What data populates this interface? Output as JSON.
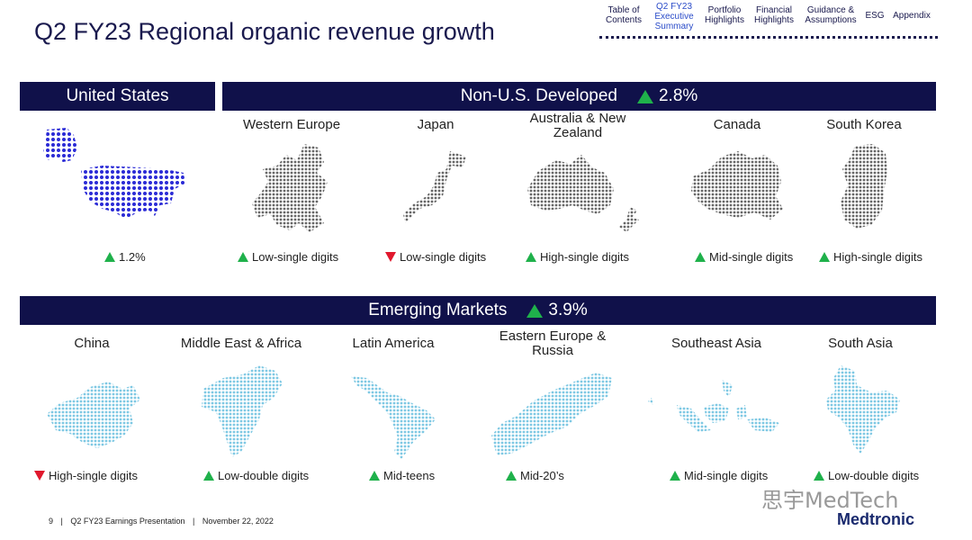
{
  "header": {
    "title": "Q2 FY23 Regional organic revenue growth",
    "nav": [
      {
        "label": "Table of\nContents",
        "active": false
      },
      {
        "label": "Q2 FY23\nExecutive\nSummary",
        "active": true
      },
      {
        "label": "Portfolio\nHighlights",
        "active": false
      },
      {
        "label": "Financial\nHighlights",
        "active": false
      },
      {
        "label": "Guidance &\nAssumptions",
        "active": false
      },
      {
        "label": "ESG",
        "active": false
      },
      {
        "label": "Appendix",
        "active": false
      }
    ]
  },
  "us": {
    "bar_label": "United States",
    "result": "1.2%",
    "direction": "up"
  },
  "developed": {
    "bar_label": "Non-U.S. Developed",
    "bar_value": "2.8%",
    "regions": [
      {
        "name": "Western Europe",
        "result": "Low-single digits",
        "direction": "up"
      },
      {
        "name": "Japan",
        "result": "Low-single digits",
        "direction": "down"
      },
      {
        "name": "Australia & New\nZealand",
        "result": "High-single digits",
        "direction": "up"
      },
      {
        "name": "Canada",
        "result": "Mid-single digits",
        "direction": "up"
      },
      {
        "name": "South Korea",
        "result": "High-single digits",
        "direction": "up"
      }
    ]
  },
  "emerging": {
    "bar_label": "Emerging Markets",
    "bar_value": "3.9%",
    "regions": [
      {
        "name": "China",
        "result": "High-single digits",
        "direction": "down"
      },
      {
        "name": "Middle East & Africa",
        "result": "Low-double digits",
        "direction": "up"
      },
      {
        "name": "Latin America",
        "result": "Mid-teens",
        "direction": "up"
      },
      {
        "name": "Eastern Europe &\nRussia",
        "result": "Mid-20’s",
        "direction": "up"
      },
      {
        "name": "Southeast Asia",
        "result": "Mid-single digits",
        "direction": "up"
      },
      {
        "name": "South Asia",
        "result": "Low-double digits",
        "direction": "up"
      }
    ]
  },
  "footer": {
    "page": "9",
    "presentation": "Q2 FY23 Earnings Presentation",
    "date": "November 22, 2022"
  },
  "watermark": "思宇MedTech",
  "brand": "Medtronic",
  "colors": {
    "bar": "#10114a",
    "up": "#1fb14b",
    "down": "#e0182d",
    "us_dots": "#2a2ad6",
    "developed_dots": "#666666",
    "emerging_dots": "#7ec8e3"
  }
}
